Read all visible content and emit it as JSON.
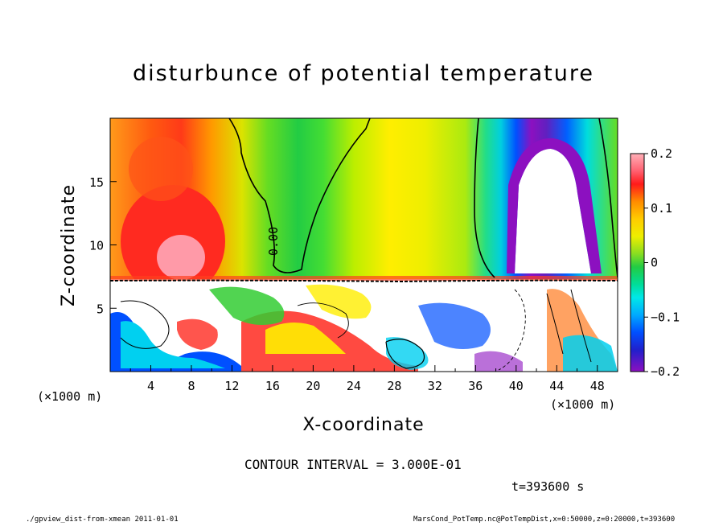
{
  "chart_data": {
    "type": "contour",
    "title": "disturbunce of potential temperature",
    "xlabel": "X-coordinate",
    "ylabel": "Z-coordinate",
    "x_unit": "(×1000 m)",
    "z_unit": "(×1000 m)",
    "xlim": [
      0,
      50
    ],
    "ylim": [
      0,
      20
    ],
    "x_ticks": [
      4,
      8,
      12,
      16,
      20,
      24,
      28,
      32,
      36,
      40,
      44,
      48
    ],
    "y_ticks": [
      5,
      10,
      15
    ],
    "colorbar": {
      "range": [
        -0.2,
        0.2
      ],
      "tick_labels": [
        "0.2",
        "0.1",
        "0",
        "−0.1",
        "−0.2"
      ],
      "tick_values": [
        0.2,
        0.1,
        0,
        -0.1,
        -0.2
      ]
    },
    "contour_label": "0.00",
    "contour_interval": "CONTOUR INTERVAL = 3.000E-01",
    "time": "t=393600 s"
  },
  "footer": {
    "left": "./gpview_dist-from-xmean  2011-01-01",
    "right": "MarsCond_PotTemp.nc@PotTempDist,x=0:50000,z=0:20000,t=393600"
  },
  "colors": {
    "positive_max": "#ffb0b8",
    "red": "#ff2020",
    "orange": "#ff8c00",
    "yellow": "#ffee00",
    "green": "#33cc33",
    "cyan": "#00e8e8",
    "blue": "#0050ff",
    "purple": "#8c10c0"
  }
}
